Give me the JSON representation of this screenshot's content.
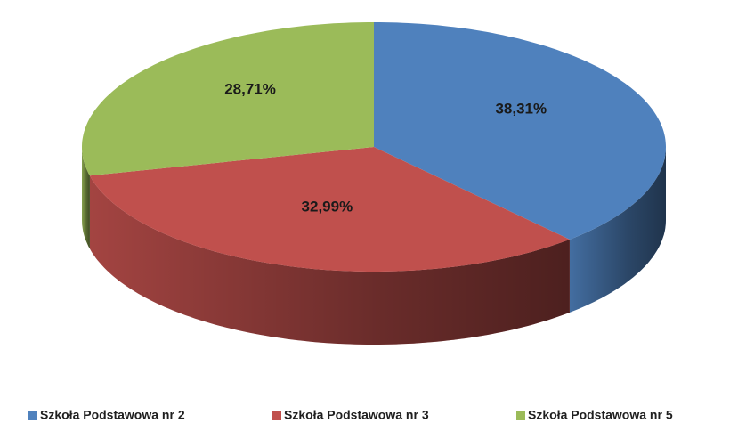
{
  "chart_data": {
    "type": "pie",
    "categories": [
      "Szkoła Podstawowa nr 2",
      "Szkoła Podstawowa nr 3",
      "Szkoła Podstawowa nr 5"
    ],
    "values": [
      38.31,
      32.99,
      28.71
    ],
    "value_labels": [
      "38,31%",
      "32,99%",
      "28,71%"
    ],
    "colors": [
      "#4f81bd",
      "#c0504d",
      "#9bbb59"
    ],
    "legend": "bottom"
  }
}
